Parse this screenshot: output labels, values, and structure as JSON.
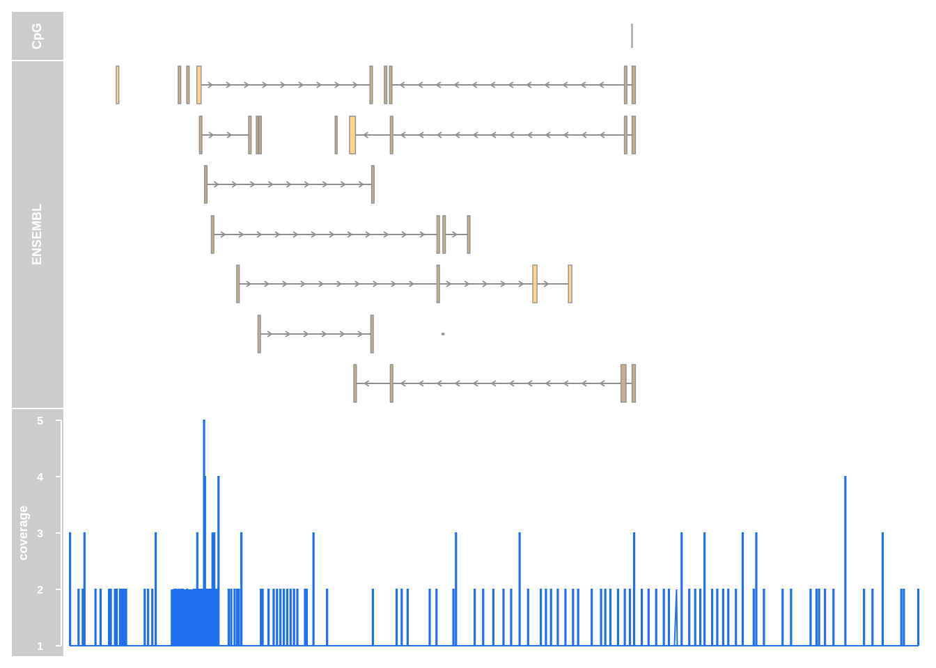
{
  "tracks": {
    "cpg_label": "CpG",
    "ensembl_label": "ENSEMBL",
    "coverage_label": "coverage"
  },
  "colors": {
    "panel_bg": "#cccccc",
    "panel_text": "#ffffff",
    "exon_fill": "#ffd58a",
    "utr_fill": "#c7ae8a",
    "exon_stroke": "#8f8f8f",
    "intron": "#8f8f8f",
    "cpg": "#a6a6a6",
    "coverage_line": "#1f6ff0"
  },
  "chart_data": {
    "type": "line",
    "title": "",
    "xlabel": "",
    "ylabel": "coverage",
    "ylim": [
      1,
      5
    ],
    "y_ticks": [
      1,
      2,
      3,
      4,
      5
    ],
    "x_range": [
      0,
      1000
    ],
    "cpg_islands": [
      {
        "start": 662,
        "end": 664
      }
    ],
    "transcripts": [
      {
        "row": 1,
        "strand": "+",
        "exons": [
          [
            55,
            58,
            "coding"
          ],
          [
            128,
            131,
            "utr"
          ],
          [
            138,
            141,
            "utr"
          ],
          [
            150,
            155,
            "coding"
          ],
          [
            354,
            357,
            "utr"
          ],
          [
            371,
            374,
            "utr"
          ],
          [
            377,
            380,
            "utr"
          ],
          [
            654,
            657,
            "utr"
          ],
          [
            663,
            667,
            "utr"
          ]
        ],
        "introns": [
          [
            155,
            354,
            "+"
          ],
          [
            380,
            654,
            "-"
          ],
          [
            657,
            663,
            "-"
          ]
        ]
      },
      {
        "row": 2,
        "strand": "-",
        "exons": [
          [
            153,
            156,
            "utr"
          ],
          [
            211,
            214,
            "utr"
          ],
          [
            220,
            222,
            "utr"
          ],
          [
            223,
            226,
            "utr"
          ],
          [
            313,
            315,
            "utr"
          ],
          [
            330,
            337,
            "coding"
          ],
          [
            378,
            381,
            "utr"
          ],
          [
            654,
            657,
            "utr"
          ],
          [
            663,
            667,
            "utr"
          ]
        ],
        "introns": [
          [
            156,
            211,
            "+"
          ],
          [
            337,
            378,
            "-"
          ],
          [
            381,
            654,
            "-"
          ],
          [
            657,
            663,
            "-"
          ]
        ]
      },
      {
        "row": 3,
        "strand": "+",
        "exons": [
          [
            159,
            162,
            "utr"
          ],
          [
            356,
            359,
            "utr"
          ]
        ],
        "introns": [
          [
            162,
            356,
            "+"
          ]
        ]
      },
      {
        "row": 4,
        "strand": "+",
        "exons": [
          [
            167,
            170,
            "utr"
          ],
          [
            433,
            436,
            "utr"
          ],
          [
            440,
            443,
            "utr"
          ],
          [
            469,
            472,
            "utr"
          ]
        ],
        "introns": [
          [
            170,
            433,
            "+"
          ],
          [
            443,
            469,
            "+"
          ]
        ]
      },
      {
        "row": 5,
        "strand": "+",
        "exons": [
          [
            197,
            200,
            "utr"
          ],
          [
            433,
            436,
            "utr"
          ],
          [
            546,
            551,
            "coding"
          ],
          [
            588,
            592,
            "coding"
          ]
        ],
        "introns": [
          [
            200,
            433,
            "+"
          ],
          [
            436,
            546,
            "+"
          ],
          [
            551,
            588,
            "+"
          ]
        ]
      },
      {
        "row": 6,
        "strand": "+",
        "exons": [
          [
            222,
            225,
            "utr"
          ],
          [
            355,
            358,
            "utr"
          ],
          [
            439,
            440,
            "utr"
          ]
        ],
        "introns": [
          [
            225,
            355,
            "+"
          ]
        ]
      },
      {
        "row": 7,
        "strand": "-",
        "exons": [
          [
            335,
            338,
            "utr"
          ],
          [
            378,
            381,
            "utr"
          ],
          [
            650,
            656,
            "utr"
          ],
          [
            663,
            667,
            "utr"
          ]
        ],
        "introns": [
          [
            338,
            378,
            "-"
          ],
          [
            381,
            650,
            "-"
          ],
          [
            656,
            663,
            "-"
          ]
        ]
      }
    ],
    "coverage_spikes": [
      {
        "x": 0,
        "y": 3
      },
      {
        "x": 10,
        "y": 2
      },
      {
        "x": 15,
        "y": 2
      },
      {
        "x": 17,
        "y": 3
      },
      {
        "x": 30,
        "y": 2
      },
      {
        "x": 36,
        "y": 2
      },
      {
        "x": 46,
        "y": 2
      },
      {
        "x": 48,
        "y": 2
      },
      {
        "x": 53,
        "y": 2
      },
      {
        "x": 55,
        "y": 2
      },
      {
        "x": 59,
        "y": 2
      },
      {
        "x": 61,
        "y": 2
      },
      {
        "x": 62,
        "y": 2
      },
      {
        "x": 64,
        "y": 2
      },
      {
        "x": 66,
        "y": 2
      },
      {
        "x": 88,
        "y": 2
      },
      {
        "x": 92,
        "y": 2
      },
      {
        "x": 97,
        "y": 2
      },
      {
        "x": 101,
        "y": 3
      },
      {
        "x": 123,
        "y": 2
      },
      {
        "x": 125,
        "y": 2
      },
      {
        "x": 128,
        "y": 2
      },
      {
        "x": 131,
        "y": 2
      },
      {
        "x": 133,
        "y": 2
      },
      {
        "x": 138,
        "y": 2
      },
      {
        "x": 146,
        "y": 2
      },
      {
        "x": 148,
        "y": 2
      },
      {
        "x": 150,
        "y": 3
      },
      {
        "x": 152,
        "y": 2
      },
      {
        "x": 154,
        "y": 2
      },
      {
        "x": 156,
        "y": 2
      },
      {
        "x": 158,
        "y": 5
      },
      {
        "x": 159,
        "y": 4
      },
      {
        "x": 160,
        "y": 2
      },
      {
        "x": 162,
        "y": 2
      },
      {
        "x": 164,
        "y": 2
      },
      {
        "x": 166,
        "y": 2
      },
      {
        "x": 168,
        "y": 3
      },
      {
        "x": 170,
        "y": 3
      },
      {
        "x": 171,
        "y": 2
      },
      {
        "x": 173,
        "y": 2
      },
      {
        "x": 175,
        "y": 4
      },
      {
        "x": 187,
        "y": 2
      },
      {
        "x": 190,
        "y": 2
      },
      {
        "x": 194,
        "y": 2
      },
      {
        "x": 197,
        "y": 2
      },
      {
        "x": 199,
        "y": 2
      },
      {
        "x": 202,
        "y": 3
      },
      {
        "x": 225,
        "y": 2
      },
      {
        "x": 227,
        "y": 2
      },
      {
        "x": 234,
        "y": 2
      },
      {
        "x": 240,
        "y": 2
      },
      {
        "x": 244,
        "y": 2
      },
      {
        "x": 248,
        "y": 2
      },
      {
        "x": 252,
        "y": 2
      },
      {
        "x": 256,
        "y": 2
      },
      {
        "x": 260,
        "y": 2
      },
      {
        "x": 264,
        "y": 2
      },
      {
        "x": 268,
        "y": 2
      },
      {
        "x": 277,
        "y": 2
      },
      {
        "x": 279,
        "y": 2
      },
      {
        "x": 287,
        "y": 3
      },
      {
        "x": 303,
        "y": 2
      },
      {
        "x": 357,
        "y": 2
      },
      {
        "x": 385,
        "y": 2
      },
      {
        "x": 391,
        "y": 2
      },
      {
        "x": 398,
        "y": 2
      },
      {
        "x": 424,
        "y": 2
      },
      {
        "x": 432,
        "y": 2
      },
      {
        "x": 452,
        "y": 2
      },
      {
        "x": 455,
        "y": 3
      },
      {
        "x": 477,
        "y": 2
      },
      {
        "x": 487,
        "y": 2
      },
      {
        "x": 499,
        "y": 2
      },
      {
        "x": 511,
        "y": 2
      },
      {
        "x": 520,
        "y": 2
      },
      {
        "x": 530,
        "y": 3
      },
      {
        "x": 540,
        "y": 2
      },
      {
        "x": 555,
        "y": 2
      },
      {
        "x": 561,
        "y": 2
      },
      {
        "x": 567,
        "y": 2
      },
      {
        "x": 575,
        "y": 2
      },
      {
        "x": 584,
        "y": 2
      },
      {
        "x": 593,
        "y": 2
      },
      {
        "x": 599,
        "y": 2
      },
      {
        "x": 615,
        "y": 2
      },
      {
        "x": 626,
        "y": 2
      },
      {
        "x": 631,
        "y": 2
      },
      {
        "x": 637,
        "y": 2
      },
      {
        "x": 646,
        "y": 2
      },
      {
        "x": 654,
        "y": 2
      },
      {
        "x": 660,
        "y": 2
      },
      {
        "x": 665,
        "y": 3
      },
      {
        "x": 674,
        "y": 2
      },
      {
        "x": 682,
        "y": 2
      },
      {
        "x": 691,
        "y": 2
      },
      {
        "x": 700,
        "y": 2
      },
      {
        "x": 706,
        "y": 2
      },
      {
        "x": 713,
        "y": 2
      },
      {
        "x": 721,
        "y": 3
      },
      {
        "x": 730,
        "y": 2
      },
      {
        "x": 737,
        "y": 2
      },
      {
        "x": 743,
        "y": 2
      },
      {
        "x": 748,
        "y": 3
      },
      {
        "x": 757,
        "y": 2
      },
      {
        "x": 763,
        "y": 2
      },
      {
        "x": 770,
        "y": 2
      },
      {
        "x": 776,
        "y": 2
      },
      {
        "x": 785,
        "y": 2
      },
      {
        "x": 793,
        "y": 3
      },
      {
        "x": 806,
        "y": 2
      },
      {
        "x": 809,
        "y": 3
      },
      {
        "x": 818,
        "y": 2
      },
      {
        "x": 840,
        "y": 2
      },
      {
        "x": 850,
        "y": 2
      },
      {
        "x": 873,
        "y": 2
      },
      {
        "x": 880,
        "y": 2
      },
      {
        "x": 883,
        "y": 2
      },
      {
        "x": 890,
        "y": 2
      },
      {
        "x": 900,
        "y": 2
      },
      {
        "x": 914,
        "y": 4
      },
      {
        "x": 936,
        "y": 2
      },
      {
        "x": 946,
        "y": 2
      },
      {
        "x": 958,
        "y": 3
      },
      {
        "x": 980,
        "y": 2
      },
      {
        "x": 983,
        "y": 2
      },
      {
        "x": 1000,
        "y": 2
      }
    ],
    "coverage_ramps": [
      [
        44,
        48
      ],
      [
        58,
        64
      ],
      [
        147,
        150
      ],
      [
        394,
        398
      ],
      [
        713,
        718
      ],
      [
        742,
        746
      ],
      [
        746,
        756
      ],
      [
        898,
        903
      ]
    ],
    "dense_regions": [
      [
        120,
        172
      ]
    ]
  }
}
